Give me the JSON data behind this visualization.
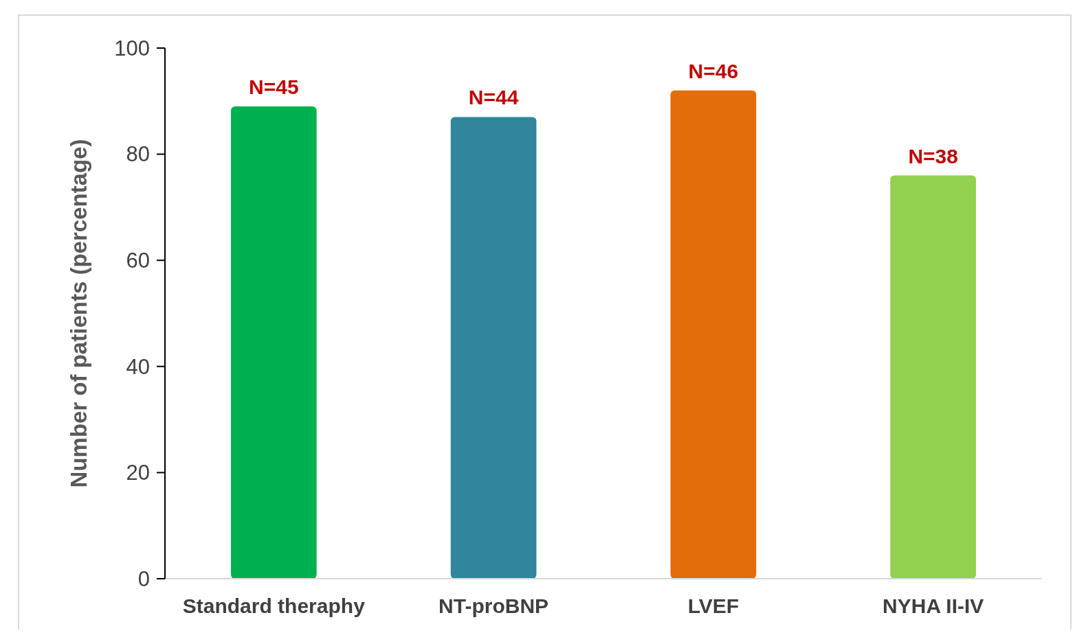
{
  "chart_data": {
    "type": "bar",
    "ylabel": "Number of patients (percentage)",
    "categories": [
      "Standard theraphy",
      "NT-proBNP",
      "LVEF",
      "NYHA II-IV"
    ],
    "values": [
      89,
      87,
      92,
      76
    ],
    "colors": [
      "#00b050",
      "#31859c",
      "#e46c0a",
      "#92d050"
    ],
    "annotations": [
      {
        "text": "N=45",
        "x": "Standard theraphy",
        "y": 89
      },
      {
        "text": "N=44",
        "x": "NT-proBNP",
        "y": 87
      },
      {
        "text": "N=46",
        "x": "LVEF",
        "y": 92
      },
      {
        "text": "N=38",
        "x": "NYHA II-IV",
        "y": 76
      }
    ],
    "ylim": [
      0,
      100
    ],
    "yticks": [
      0,
      20,
      40,
      60,
      80,
      100
    ],
    "grid": false
  }
}
